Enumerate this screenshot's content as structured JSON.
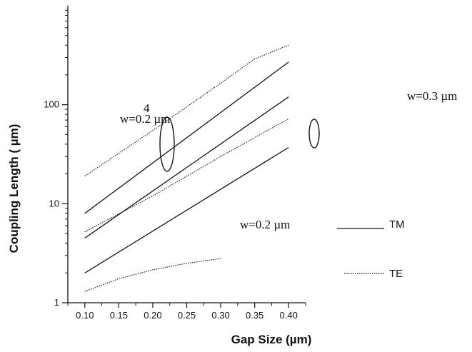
{
  "chart_data": {
    "type": "line",
    "xlabel": "Gap Size (µm)",
    "ylabel": "Coupling Length (   µm)",
    "xlim": [
      0.075,
      0.425
    ],
    "ylim": [
      1,
      1000
    ],
    "y_scale": "log",
    "x_ticks": [
      "0.10",
      "0.15",
      "0.20",
      "0.25",
      "0.30",
      "0.35",
      "0.40"
    ],
    "y_ticks": [
      "1",
      "10",
      "100"
    ],
    "grid": false,
    "legend": {
      "position": "bottom-right",
      "entries": [
        {
          "label": "TM",
          "style": "solid"
        },
        {
          "label": "TE",
          "style": "dotted"
        }
      ]
    },
    "annotations": [
      {
        "text": "w=0.2 µm",
        "superscript": "4"
      },
      {
        "text": "w=0.3 µm"
      },
      {
        "text": "w=0.2 µm"
      }
    ],
    "series": [
      {
        "style": "solid",
        "x": [
          0.1,
          0.4
        ],
        "y": [
          8.0,
          270
        ]
      },
      {
        "style": "solid",
        "x": [
          0.1,
          0.4
        ],
        "y": [
          4.5,
          120
        ]
      },
      {
        "style": "solid",
        "x": [
          0.1,
          0.4
        ],
        "y": [
          2.0,
          37
        ]
      },
      {
        "style": "dotted",
        "x": [
          0.1,
          0.2,
          0.3,
          0.35,
          0.4
        ],
        "y": [
          19,
          55,
          165,
          290,
          400
        ]
      },
      {
        "style": "dotted",
        "x": [
          0.1,
          0.2,
          0.3,
          0.4
        ],
        "y": [
          5.2,
          12,
          30,
          72
        ]
      },
      {
        "style": "dotted",
        "x": [
          0.1,
          0.15,
          0.2,
          0.25,
          0.3
        ],
        "y": [
          1.3,
          1.75,
          2.15,
          2.5,
          2.8
        ]
      }
    ]
  }
}
